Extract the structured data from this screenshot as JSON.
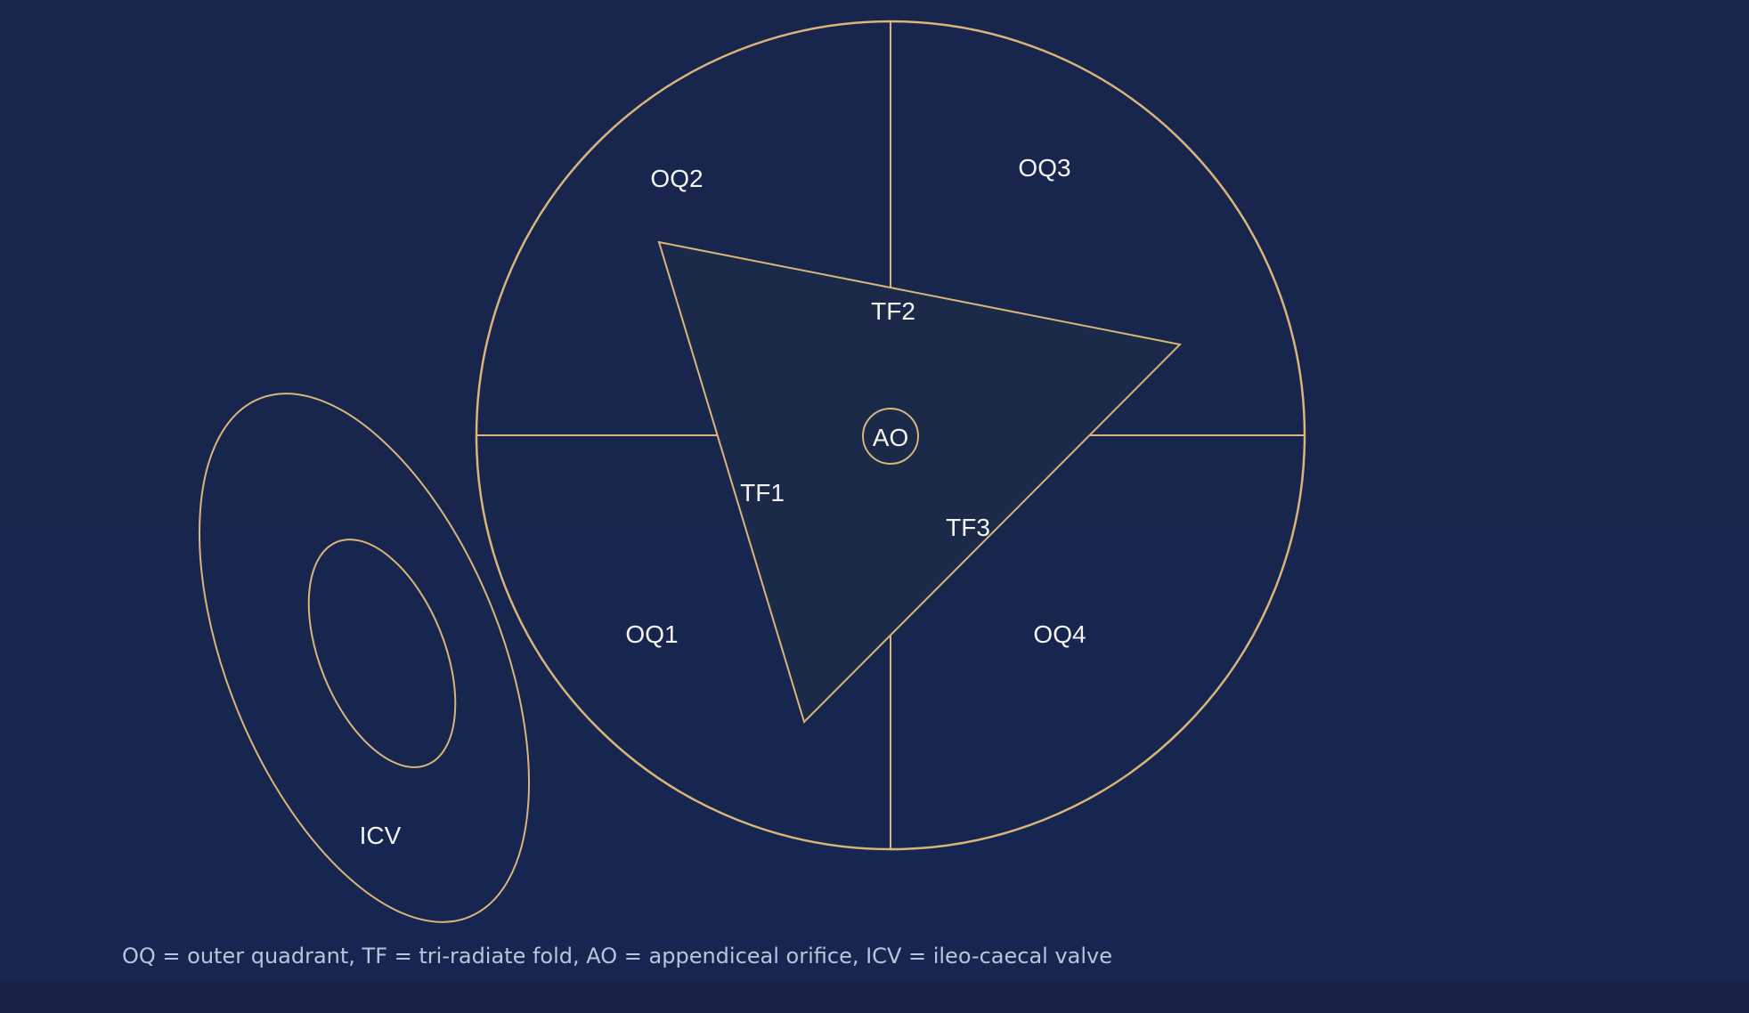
{
  "colors": {
    "background": "#18264d",
    "outline": "#d9b57a",
    "label_text": "#f3f3f0",
    "caption_text": "#b9c4dc",
    "triangle_fill": "#1c2a4a"
  },
  "labels": {
    "oq1": "OQ1",
    "oq2": "OQ2",
    "oq3": "OQ3",
    "oq4": "OQ4",
    "tf1": "TF1",
    "tf2": "TF2",
    "tf3": "TF3",
    "ao": "AO",
    "icv": "ICV"
  },
  "caption": "OQ = outer quadrant, TF = tri-radiate fold, AO = appendiceal orifice, ICV = ileo-caecal valve"
}
